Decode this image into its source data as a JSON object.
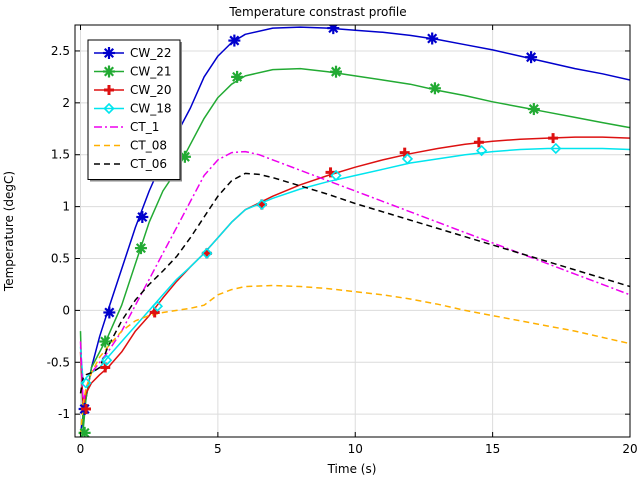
{
  "chart_data": {
    "type": "line",
    "title": "Temperature constrast profile",
    "xlabel": "Time (s)",
    "ylabel": "Temperature (degC)",
    "xlim": [
      -0.2,
      20
    ],
    "ylim": [
      -1.22,
      2.75
    ],
    "x_ticks": [
      0,
      5,
      10,
      15,
      20
    ],
    "x_tick_labels": [
      "0",
      "5",
      "10",
      "15",
      "20"
    ],
    "y_ticks": [
      -1,
      -0.5,
      0,
      0.5,
      1,
      1.5,
      2,
      2.5
    ],
    "y_tick_labels": [
      "-1",
      "-0.5",
      "0",
      "0.5",
      "1",
      "1.5",
      "2",
      "2.5"
    ],
    "grid": true,
    "legend_position": "top-left",
    "series": [
      {
        "name": "CW_22",
        "color": "#0000cc",
        "dash": "solid",
        "marker": "asterisk",
        "x": [
          0,
          0.1,
          0.2,
          0.4,
          0.7,
          1.0,
          1.5,
          2.0,
          2.5,
          3.0,
          3.5,
          4.0,
          4.5,
          5.0,
          5.5,
          6.0,
          7.0,
          8.0,
          9.0,
          10.0,
          11.0,
          12.0,
          13.0,
          14.0,
          15.0,
          16.0,
          17.0,
          18.0,
          19.0,
          20.0
        ],
        "y": [
          -1.2,
          -1.0,
          -0.85,
          -0.55,
          -0.25,
          0.0,
          0.4,
          0.8,
          1.15,
          1.45,
          1.7,
          1.95,
          2.25,
          2.45,
          2.58,
          2.66,
          2.72,
          2.73,
          2.72,
          2.7,
          2.68,
          2.65,
          2.61,
          2.56,
          2.51,
          2.45,
          2.39,
          2.33,
          2.28,
          2.22
        ],
        "marker_x": [
          0.15,
          1.05,
          2.25,
          5.6,
          9.2,
          12.8,
          16.4
        ],
        "marker_y": [
          -0.95,
          -0.02,
          0.9,
          2.6,
          2.72,
          2.62,
          2.44
        ]
      },
      {
        "name": "CW_21",
        "color": "#22aa33",
        "dash": "solid",
        "marker": "asterisk",
        "x": [
          0,
          0.1,
          0.2,
          0.4,
          0.7,
          1.0,
          1.5,
          2.0,
          2.5,
          3.0,
          3.5,
          4.0,
          4.5,
          5.0,
          5.5,
          6.0,
          7.0,
          8.0,
          9.0,
          10.0,
          11.0,
          12.0,
          13.0,
          14.0,
          15.0,
          16.0,
          17.0,
          18.0,
          19.0,
          20.0
        ],
        "y": [
          -0.2,
          -1.15,
          -0.85,
          -0.55,
          -0.4,
          -0.25,
          0.05,
          0.45,
          0.85,
          1.15,
          1.35,
          1.6,
          1.85,
          2.05,
          2.18,
          2.26,
          2.32,
          2.33,
          2.3,
          2.26,
          2.22,
          2.18,
          2.12,
          2.07,
          2.01,
          1.96,
          1.91,
          1.86,
          1.81,
          1.76
        ],
        "marker_x": [
          0.15,
          0.9,
          2.2,
          3.8,
          5.7,
          9.3,
          12.9,
          16.5
        ],
        "marker_y": [
          -1.18,
          -0.3,
          0.6,
          1.48,
          2.25,
          2.3,
          2.14,
          1.94
        ]
      },
      {
        "name": "CW_20",
        "color": "#dd1111",
        "dash": "solid",
        "marker": "plus",
        "x": [
          0,
          0.1,
          0.2,
          0.4,
          0.7,
          1.0,
          1.5,
          2.0,
          2.5,
          3.0,
          3.5,
          4.0,
          4.5,
          5.0,
          5.5,
          6.0,
          7.0,
          8.0,
          9.0,
          10.0,
          11.0,
          12.0,
          13.0,
          14.0,
          15.0,
          16.0,
          17.0,
          18.0,
          19.0,
          20.0
        ],
        "y": [
          -0.4,
          -0.95,
          -0.8,
          -0.7,
          -0.62,
          -0.55,
          -0.4,
          -0.2,
          -0.05,
          0.12,
          0.28,
          0.42,
          0.55,
          0.7,
          0.85,
          0.97,
          1.1,
          1.21,
          1.3,
          1.38,
          1.45,
          1.51,
          1.56,
          1.6,
          1.63,
          1.65,
          1.66,
          1.67,
          1.67,
          1.66
        ],
        "marker_x": [
          0.2,
          0.9,
          2.7,
          4.6,
          6.6,
          9.1,
          11.8,
          14.5,
          17.2
        ],
        "marker_y": [
          -0.95,
          -0.55,
          -0.02,
          0.55,
          1.02,
          1.33,
          1.52,
          1.62,
          1.66
        ]
      },
      {
        "name": "CW_18",
        "color": "#00e5ee",
        "dash": "solid",
        "marker": "diamond",
        "x": [
          0,
          0.1,
          0.2,
          0.4,
          0.7,
          1.0,
          1.5,
          2.0,
          2.5,
          3.0,
          3.5,
          4.0,
          4.5,
          5.0,
          5.5,
          6.0,
          7.0,
          8.0,
          9.0,
          10.0,
          11.0,
          12.0,
          13.0,
          14.0,
          15.0,
          16.0,
          17.0,
          18.0,
          19.0,
          20.0
        ],
        "y": [
          -0.35,
          -0.7,
          -0.65,
          -0.6,
          -0.55,
          -0.45,
          -0.3,
          -0.15,
          0.0,
          0.15,
          0.3,
          0.42,
          0.55,
          0.7,
          0.85,
          0.97,
          1.08,
          1.17,
          1.24,
          1.3,
          1.36,
          1.42,
          1.46,
          1.5,
          1.53,
          1.55,
          1.56,
          1.56,
          1.56,
          1.55
        ],
        "marker_x": [
          0.2,
          0.95,
          2.8,
          4.6,
          6.6,
          9.3,
          11.9,
          14.6,
          17.3
        ],
        "marker_y": [
          -0.7,
          -0.48,
          0.04,
          0.55,
          1.02,
          1.3,
          1.46,
          1.54,
          1.56
        ]
      },
      {
        "name": "CT_1",
        "color": "#ee00ee",
        "dash": "dashdot",
        "marker": "none",
        "x": [
          0,
          0.1,
          0.2,
          0.4,
          0.7,
          1.0,
          1.5,
          2.0,
          2.5,
          3.0,
          3.5,
          4.0,
          4.5,
          5.0,
          5.5,
          6.0,
          6.5,
          7.0,
          8.0,
          9.0,
          10.0,
          11.0,
          12.0,
          13.0,
          14.0,
          15.0,
          16.0,
          17.0,
          18.0,
          19.0,
          20.0
        ],
        "y": [
          -0.3,
          -0.9,
          -0.75,
          -0.6,
          -0.5,
          -0.4,
          -0.2,
          0.05,
          0.3,
          0.55,
          0.8,
          1.05,
          1.3,
          1.45,
          1.52,
          1.53,
          1.5,
          1.45,
          1.35,
          1.25,
          1.15,
          1.05,
          0.95,
          0.85,
          0.75,
          0.65,
          0.55,
          0.45,
          0.35,
          0.25,
          0.15
        ]
      },
      {
        "name": "CT_08",
        "color": "#ffb000",
        "dash": "dashed",
        "marker": "none",
        "x": [
          0,
          0.1,
          0.2,
          0.4,
          0.7,
          1.0,
          1.5,
          2.0,
          2.5,
          3.0,
          3.5,
          4.0,
          4.5,
          5.0,
          5.5,
          6.0,
          7.0,
          8.0,
          9.0,
          10.0,
          11.0,
          12.0,
          13.0,
          14.0,
          15.0,
          16.0,
          17.0,
          18.0,
          19.0,
          20.0
        ],
        "y": [
          -1.2,
          -0.9,
          -0.75,
          -0.6,
          -0.45,
          -0.35,
          -0.2,
          -0.1,
          -0.05,
          -0.02,
          0.0,
          0.02,
          0.05,
          0.15,
          0.2,
          0.23,
          0.24,
          0.23,
          0.21,
          0.18,
          0.15,
          0.11,
          0.06,
          0.0,
          -0.05,
          -0.1,
          -0.15,
          -0.2,
          -0.26,
          -0.32
        ]
      },
      {
        "name": "CT_06",
        "color": "#000000",
        "dash": "dashed",
        "marker": "none",
        "x": [
          0,
          0.1,
          0.2,
          0.4,
          0.7,
          1.0,
          1.5,
          2.0,
          2.5,
          3.0,
          3.5,
          4.0,
          4.5,
          5.0,
          5.5,
          6.0,
          6.5,
          7.0,
          8.0,
          9.0,
          10.0,
          11.0,
          12.0,
          13.0,
          14.0,
          15.0,
          16.0,
          17.0,
          18.0,
          19.0,
          20.0
        ],
        "y": [
          -0.8,
          -0.65,
          -0.62,
          -0.6,
          -0.55,
          -0.35,
          -0.1,
          0.1,
          0.25,
          0.38,
          0.52,
          0.7,
          0.9,
          1.1,
          1.25,
          1.32,
          1.31,
          1.28,
          1.2,
          1.12,
          1.03,
          0.95,
          0.87,
          0.79,
          0.71,
          0.63,
          0.55,
          0.47,
          0.39,
          0.31,
          0.23
        ]
      }
    ]
  }
}
